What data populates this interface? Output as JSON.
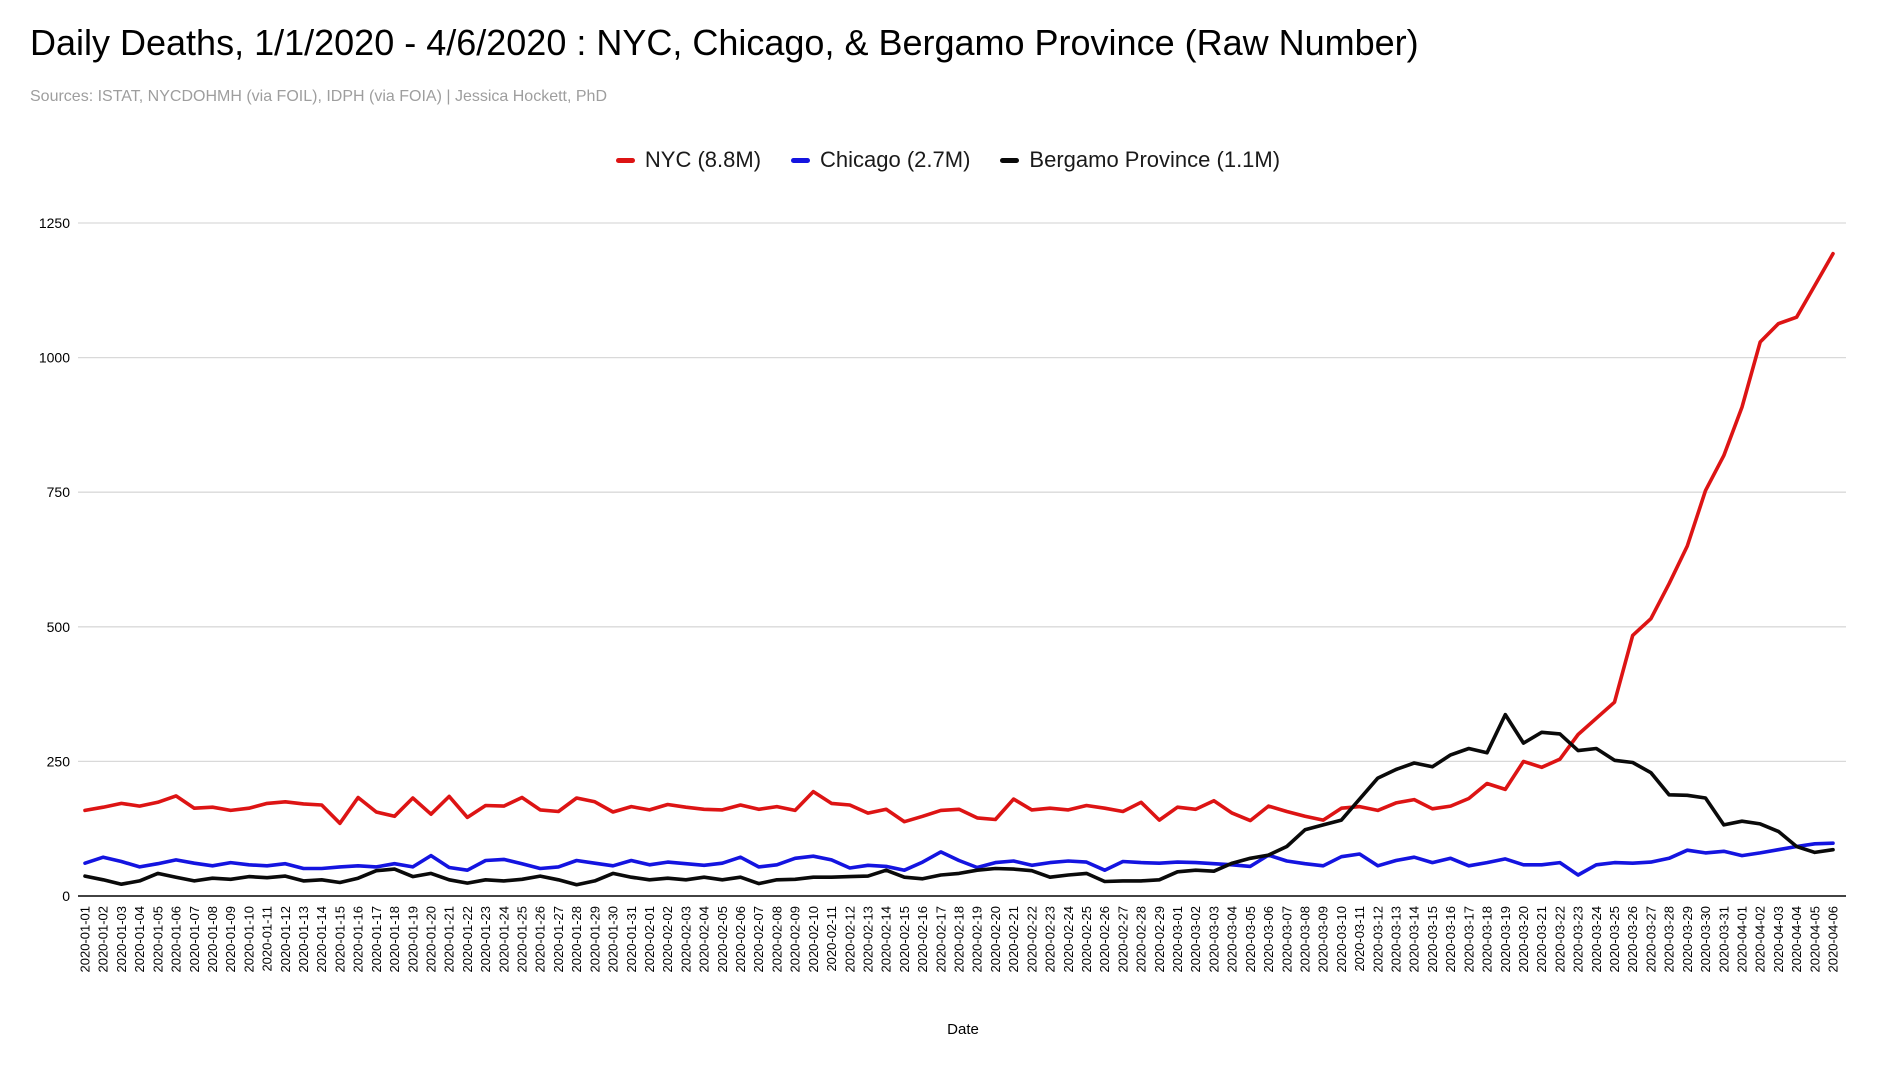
{
  "page": {
    "title": "Daily Deaths, 1/1/2020 - 4/6/2020 : NYC, Chicago, & Bergamo Province (Raw Number)",
    "subtitle": "Sources: ISTAT, NYCDOHMH (via FOIL), IDPH (via FOIA) | Jessica Hockett, PhD"
  },
  "legend": {
    "items": [
      {
        "label": "NYC (8.8M)",
        "color": "#dd1414"
      },
      {
        "label": "Chicago (2.7M)",
        "color": "#1414e0"
      },
      {
        "label": "Bergamo Province (1.1M)",
        "color": "#0a0a0a"
      }
    ]
  },
  "chart_data": {
    "type": "line",
    "title": "Daily Deaths, 1/1/2020 - 4/6/2020 : NYC, Chicago, & Bergamo Province (Raw Number)",
    "xlabel": "Date",
    "ylabel": "",
    "ylim": [
      0,
      1250
    ],
    "yticks": [
      0,
      250,
      500,
      750,
      1000,
      1250
    ],
    "grid": true,
    "legend_position": "top-center",
    "x": [
      "2020-01-01",
      "2020-01-02",
      "2020-01-03",
      "2020-01-04",
      "2020-01-05",
      "2020-01-06",
      "2020-01-07",
      "2020-01-08",
      "2020-01-09",
      "2020-01-10",
      "2020-01-11",
      "2020-01-12",
      "2020-01-13",
      "2020-01-14",
      "2020-01-15",
      "2020-01-16",
      "2020-01-17",
      "2020-01-18",
      "2020-01-19",
      "2020-01-20",
      "2020-01-21",
      "2020-01-22",
      "2020-01-23",
      "2020-01-24",
      "2020-01-25",
      "2020-01-26",
      "2020-01-27",
      "2020-01-28",
      "2020-01-29",
      "2020-01-30",
      "2020-01-31",
      "2020-02-01",
      "2020-02-02",
      "2020-02-03",
      "2020-02-04",
      "2020-02-05",
      "2020-02-06",
      "2020-02-07",
      "2020-02-08",
      "2020-02-09",
      "2020-02-10",
      "2020-02-11",
      "2020-02-12",
      "2020-02-13",
      "2020-02-14",
      "2020-02-15",
      "2020-02-16",
      "2020-02-17",
      "2020-02-18",
      "2020-02-19",
      "2020-02-20",
      "2020-02-21",
      "2020-02-22",
      "2020-02-23",
      "2020-02-24",
      "2020-02-25",
      "2020-02-26",
      "2020-02-27",
      "2020-02-28",
      "2020-02-29",
      "2020-03-01",
      "2020-03-02",
      "2020-03-03",
      "2020-03-04",
      "2020-03-05",
      "2020-03-06",
      "2020-03-07",
      "2020-03-08",
      "2020-03-09",
      "2020-03-10",
      "2020-03-11",
      "2020-03-12",
      "2020-03-13",
      "2020-03-14",
      "2020-03-15",
      "2020-03-16",
      "2020-03-17",
      "2020-03-18",
      "2020-03-19",
      "2020-03-20",
      "2020-03-21",
      "2020-03-22",
      "2020-03-23",
      "2020-03-24",
      "2020-03-25",
      "2020-03-26",
      "2020-03-27",
      "2020-03-28",
      "2020-03-29",
      "2020-03-30",
      "2020-03-31",
      "2020-04-01",
      "2020-04-02",
      "2020-04-03",
      "2020-04-04",
      "2020-04-05",
      "2020-04-06"
    ],
    "series": [
      {
        "name": "NYC (8.8M)",
        "color": "#dd1414",
        "values": [
          159,
          165,
          172,
          167,
          174,
          186,
          163,
          165,
          159,
          163,
          172,
          175,
          171,
          169,
          135,
          183,
          156,
          148,
          182,
          152,
          185,
          146,
          168,
          167,
          183,
          160,
          157,
          182,
          175,
          156,
          166,
          160,
          170,
          165,
          161,
          160,
          169,
          161,
          166,
          159,
          194,
          172,
          169,
          154,
          161,
          138,
          148,
          159,
          161,
          145,
          142,
          180,
          160,
          163,
          160,
          168,
          163,
          157,
          174,
          141,
          165,
          161,
          177,
          154,
          140,
          167,
          157,
          148,
          141,
          163,
          166,
          159,
          173,
          179,
          162,
          167,
          181,
          209,
          198,
          250,
          239,
          254,
          300,
          330,
          360,
          484,
          515,
          580,
          650,
          753,
          818,
          908,
          1029,
          1063,
          1075,
          1134,
          1193
        ]
      },
      {
        "name": "Chicago (2.7M)",
        "color": "#1414e0",
        "values": [
          61,
          72,
          64,
          54,
          60,
          67,
          61,
          56,
          62,
          58,
          56,
          60,
          51,
          51,
          54,
          56,
          54,
          60,
          54,
          75,
          53,
          48,
          66,
          68,
          60,
          51,
          54,
          66,
          61,
          56,
          66,
          58,
          63,
          60,
          57,
          61,
          72,
          54,
          58,
          70,
          74,
          67,
          52,
          57,
          55,
          48,
          63,
          82,
          66,
          53,
          62,
          65,
          57,
          62,
          65,
          63,
          48,
          64,
          62,
          61,
          63,
          62,
          60,
          58,
          55,
          76,
          65,
          60,
          56,
          73,
          78,
          56,
          66,
          72,
          62,
          70,
          56,
          62,
          69,
          58,
          58,
          62,
          39,
          58,
          62,
          61,
          63,
          70,
          85,
          80,
          83,
          75,
          80,
          86,
          92,
          97,
          98
        ]
      },
      {
        "name": "Bergamo Province (1.1M)",
        "color": "#0a0a0a",
        "values": [
          37,
          30,
          22,
          28,
          42,
          35,
          28,
          33,
          31,
          36,
          34,
          37,
          28,
          30,
          25,
          33,
          47,
          50,
          36,
          42,
          30,
          24,
          30,
          28,
          31,
          37,
          30,
          21,
          28,
          42,
          35,
          30,
          33,
          30,
          35,
          30,
          35,
          23,
          30,
          31,
          35,
          35,
          36,
          37,
          48,
          35,
          32,
          39,
          42,
          48,
          51,
          50,
          47,
          35,
          39,
          42,
          27,
          28,
          28,
          30,
          45,
          48,
          46,
          61,
          70,
          76,
          92,
          123,
          132,
          141,
          180,
          219,
          235,
          247,
          240,
          262,
          274,
          266,
          337,
          284,
          304,
          301,
          270,
          274,
          252,
          248,
          229,
          188,
          187,
          182,
          132,
          139,
          134,
          120,
          92,
          81,
          86
        ]
      }
    ]
  },
  "axes": {
    "x_title": "Date"
  },
  "colors": {
    "grid": "#d9d9d9",
    "axis": "#424242",
    "tick_text": "#000000"
  }
}
